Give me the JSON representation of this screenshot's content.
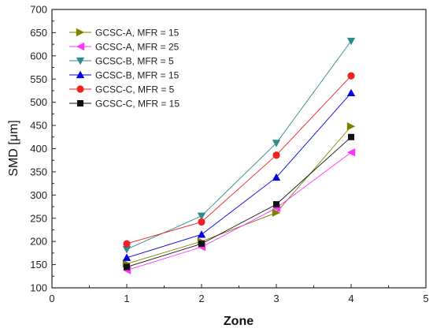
{
  "chart_data": {
    "type": "line",
    "title": "",
    "xlabel": "Zone",
    "ylabel": "SMD [μm]",
    "xlim": [
      0,
      5
    ],
    "ylim": [
      100,
      700
    ],
    "xticks": [
      "0",
      "1",
      "2",
      "3",
      "4",
      "5"
    ],
    "yticks": [
      "100",
      "150",
      "200",
      "250",
      "300",
      "350",
      "400",
      "450",
      "500",
      "550",
      "600",
      "650",
      "700"
    ],
    "grid": false,
    "legend_position": "top-left",
    "x": [
      1,
      2,
      3,
      4
    ],
    "series": [
      {
        "name": "GCSC-A, MFR = 15",
        "marker": "triangle-right",
        "color": "#808000",
        "values": [
          152,
          200,
          262,
          448
        ]
      },
      {
        "name": "GCSC-A, MFR = 25",
        "marker": "triangle-left",
        "color": "#ff33ff",
        "values": [
          138,
          188,
          272,
          392
        ]
      },
      {
        "name": "GCSC-B, MFR = 5",
        "marker": "triangle-down",
        "color": "#2e8b8b",
        "values": [
          183,
          255,
          412,
          632
        ]
      },
      {
        "name": "GCSC-B, MFR = 15",
        "marker": "triangle-up",
        "color": "#0000e0",
        "values": [
          165,
          215,
          338,
          520
        ]
      },
      {
        "name": "GCSC-C, MFR = 5",
        "marker": "circle",
        "color": "#ee2222",
        "values": [
          195,
          242,
          386,
          557
        ]
      },
      {
        "name": "GCSC-C, MFR = 15",
        "marker": "square",
        "color": "#111111",
        "values": [
          145,
          195,
          280,
          425
        ]
      }
    ]
  }
}
